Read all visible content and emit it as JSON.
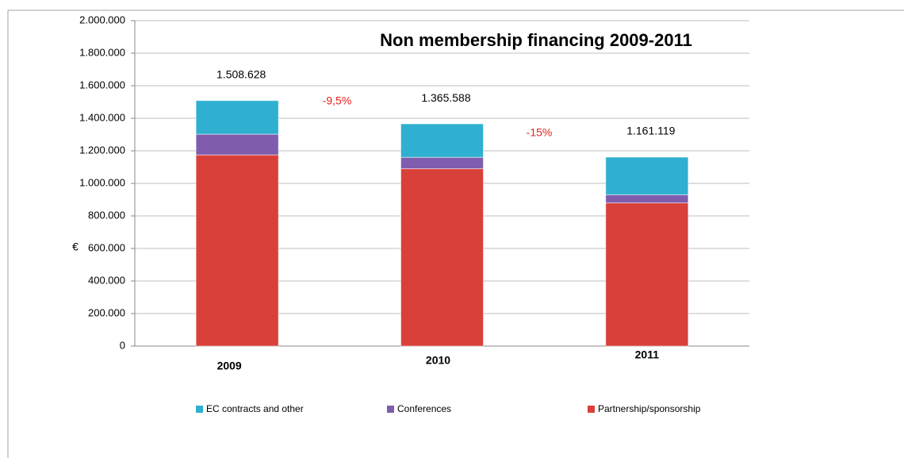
{
  "chart_data": {
    "type": "stacked_bar",
    "title": "Non membership financing 2009-2011",
    "y_label": "€",
    "categories": [
      "2009",
      "2010",
      "2011"
    ],
    "series": [
      {
        "name": "Partnership/sponsorship",
        "color": "#d9403a",
        "values": [
          1175000,
          1090000,
          880000
        ]
      },
      {
        "name": "Conferences",
        "color": "#7f5cae",
        "values": [
          127000,
          70000,
          50000
        ]
      },
      {
        "name": "EC contracts and other",
        "color": "#2fb0d0",
        "values": [
          206628,
          205588,
          231119
        ]
      }
    ],
    "totals": [
      1508628,
      1365588,
      1161119
    ],
    "total_labels": [
      "1.508.628",
      "1.365.588",
      "1.161.119"
    ],
    "annotations": [
      "-9,5%",
      "-15%"
    ],
    "ylim": [
      0,
      2000000
    ],
    "yticks": [
      0,
      {
        "value": 200000,
        "label": "200.000"
      },
      {
        "value": 400000,
        "label": "400.000"
      },
      {
        "value": 600000,
        "label": "600.000"
      },
      {
        "value": 800000,
        "label": "800.000"
      },
      {
        "value": 1000000,
        "label": "1.000.000"
      },
      {
        "value": 1200000,
        "label": "1.200.000"
      },
      {
        "value": 1400000,
        "label": "1.400.000"
      },
      {
        "value": 1600000,
        "label": "1.600.000"
      },
      {
        "value": 1800000,
        "label": "1.800.000"
      },
      {
        "value": 2000000,
        "label": "2.000.000"
      }
    ],
    "grid": true,
    "legend": "bottom"
  }
}
